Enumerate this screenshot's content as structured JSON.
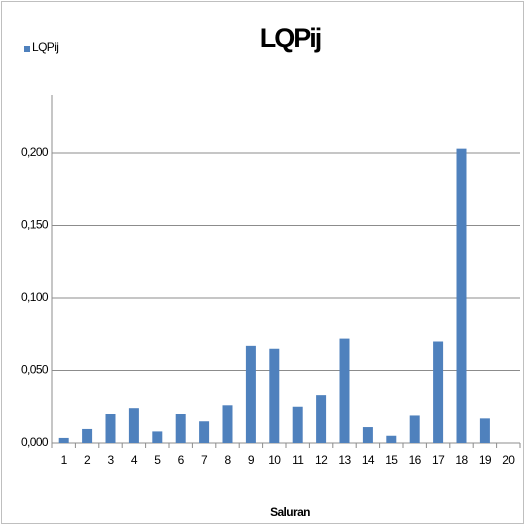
{
  "chart_data": {
    "type": "bar",
    "title": "LQPij",
    "x_label": "Saluran",
    "categories": [
      "1",
      "2",
      "3",
      "4",
      "5",
      "6",
      "7",
      "8",
      "9",
      "10",
      "11",
      "12",
      "13",
      "14",
      "15",
      "16",
      "17",
      "18",
      "19",
      "20"
    ],
    "series": [
      {
        "name": "LQPij",
        "color": "#4f81bd",
        "values": [
          0.0035,
          0.0097,
          0.02,
          0.024,
          0.008,
          0.02,
          0.015,
          0.026,
          0.067,
          0.065,
          0.025,
          0.033,
          0.072,
          0.011,
          0.005,
          0.019,
          0.07,
          0.203,
          0.017,
          null
        ]
      }
    ],
    "ylim": [
      0,
      0.24
    ],
    "yticks": [
      {
        "value": 0,
        "label": "0,000"
      },
      {
        "value": 0.05,
        "label": "0,050"
      },
      {
        "value": 0.1,
        "label": "0,100"
      },
      {
        "value": 0.15,
        "label": "0,150"
      },
      {
        "value": 0.2,
        "label": "0,200"
      }
    ],
    "grid": true,
    "legend": "top-left"
  }
}
